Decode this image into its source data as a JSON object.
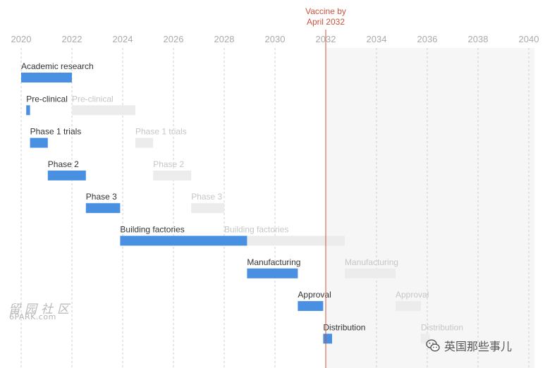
{
  "chart_data": {
    "type": "gantt",
    "x_axis": {
      "min": 2020,
      "max": 2040,
      "ticks": [
        "2020",
        "2022",
        "2024",
        "2026",
        "2028",
        "2030",
        "2032",
        "2034",
        "2036",
        "2038",
        "2040"
      ]
    },
    "marker": {
      "year": 2032.0,
      "label_line1": "Vaccine by",
      "label_line2": "April 2032",
      "color": "#c8553d"
    },
    "shaded_after_year": 2032.0,
    "colors": {
      "actual": "#4a90e2",
      "ghost": "#ececec",
      "ghost_text": "#c6c6c6",
      "text": "#333333",
      "axis": "#aaaaaa"
    },
    "tasks": [
      {
        "label": "Academic research",
        "start": 2020.0,
        "end": 2022.0,
        "ghost": null
      },
      {
        "label": "Pre-clinical",
        "start": 2020.2,
        "end": 2020.35,
        "ghost": {
          "label": "Pre-clinical",
          "start": 2022.0,
          "end": 2024.5
        }
      },
      {
        "label": "Phase 1 trials",
        "start": 2020.35,
        "end": 2021.05,
        "ghost": {
          "label": "Phase 1 trials",
          "start": 2024.5,
          "end": 2025.2
        }
      },
      {
        "label": "Phase 2",
        "start": 2021.05,
        "end": 2022.55,
        "ghost": {
          "label": "Phase 2",
          "start": 2025.2,
          "end": 2026.7
        }
      },
      {
        "label": "Phase 3",
        "start": 2022.55,
        "end": 2023.9,
        "ghost": {
          "label": "Phase 3",
          "start": 2026.7,
          "end": 2028.0
        }
      },
      {
        "label": "Building factories",
        "start": 2023.9,
        "end": 2028.9,
        "ghost": {
          "label": "Building factories",
          "start": 2028.0,
          "end": 2032.75
        }
      },
      {
        "label": "Manufacturing",
        "start": 2028.9,
        "end": 2030.9,
        "ghost": {
          "label": "Manufacturing",
          "start": 2032.75,
          "end": 2034.75
        }
      },
      {
        "label": "Approval",
        "start": 2030.9,
        "end": 2031.9,
        "ghost": {
          "label": "Approval",
          "start": 2034.75,
          "end": 2035.75
        }
      },
      {
        "label": "Distribution",
        "start": 2031.9,
        "end": 2032.25,
        "ghost": {
          "label": "Distribution",
          "start": 2035.75,
          "end": 2036.1
        }
      }
    ]
  },
  "watermark": {
    "site_cn": "留园社区",
    "site_en": "6PARK.com",
    "wechat": "英国那些事儿",
    "wechat_icon": "wechat-icon"
  }
}
